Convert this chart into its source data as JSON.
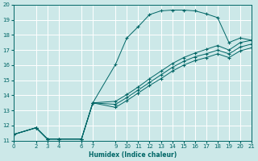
{
  "bg_color": "#cce8e8",
  "grid_color": "#ffffff",
  "line_color": "#006666",
  "xlabel": "Humidex (Indice chaleur)",
  "xlim": [
    0,
    21
  ],
  "ylim": [
    11,
    20
  ],
  "xticks": [
    0,
    2,
    3,
    4,
    6,
    7,
    9,
    10,
    11,
    12,
    13,
    14,
    15,
    16,
    17,
    18,
    19,
    20,
    21
  ],
  "yticks": [
    11,
    12,
    13,
    14,
    15,
    16,
    17,
    18,
    19,
    20
  ],
  "lines": [
    {
      "x": [
        0,
        2,
        3,
        4,
        6,
        7,
        9,
        10,
        11,
        12,
        13,
        14,
        15,
        16,
        17,
        18,
        19,
        20,
        21
      ],
      "y": [
        11.4,
        11.85,
        11.1,
        11.1,
        11.1,
        13.5,
        16.05,
        17.8,
        18.55,
        19.35,
        19.6,
        19.65,
        19.65,
        19.6,
        19.4,
        19.15,
        17.5,
        17.8,
        17.65
      ],
      "marker": "+"
    },
    {
      "x": [
        0,
        2,
        3,
        4,
        6,
        7,
        9,
        10,
        11,
        12,
        13,
        14,
        15,
        16,
        17,
        18,
        19,
        20,
        21
      ],
      "y": [
        11.4,
        11.85,
        11.1,
        11.1,
        11.1,
        13.5,
        13.6,
        14.05,
        14.55,
        15.1,
        15.6,
        16.1,
        16.5,
        16.8,
        17.05,
        17.3,
        17.0,
        17.5,
        17.65
      ],
      "marker": "+"
    },
    {
      "x": [
        0,
        2,
        3,
        4,
        6,
        7,
        9,
        10,
        11,
        12,
        13,
        14,
        15,
        16,
        17,
        18,
        19,
        20,
        21
      ],
      "y": [
        11.4,
        11.85,
        11.1,
        11.1,
        11.1,
        13.5,
        13.4,
        13.85,
        14.35,
        14.85,
        15.35,
        15.85,
        16.25,
        16.55,
        16.75,
        17.0,
        16.75,
        17.2,
        17.4
      ],
      "marker": "+"
    },
    {
      "x": [
        0,
        2,
        3,
        4,
        6,
        7,
        9,
        10,
        11,
        12,
        13,
        14,
        15,
        16,
        17,
        18,
        19,
        20,
        21
      ],
      "y": [
        11.4,
        11.85,
        11.1,
        11.1,
        11.1,
        13.5,
        13.2,
        13.65,
        14.15,
        14.65,
        15.1,
        15.6,
        16.0,
        16.3,
        16.5,
        16.75,
        16.5,
        16.95,
        17.15
      ],
      "marker": "+"
    }
  ]
}
